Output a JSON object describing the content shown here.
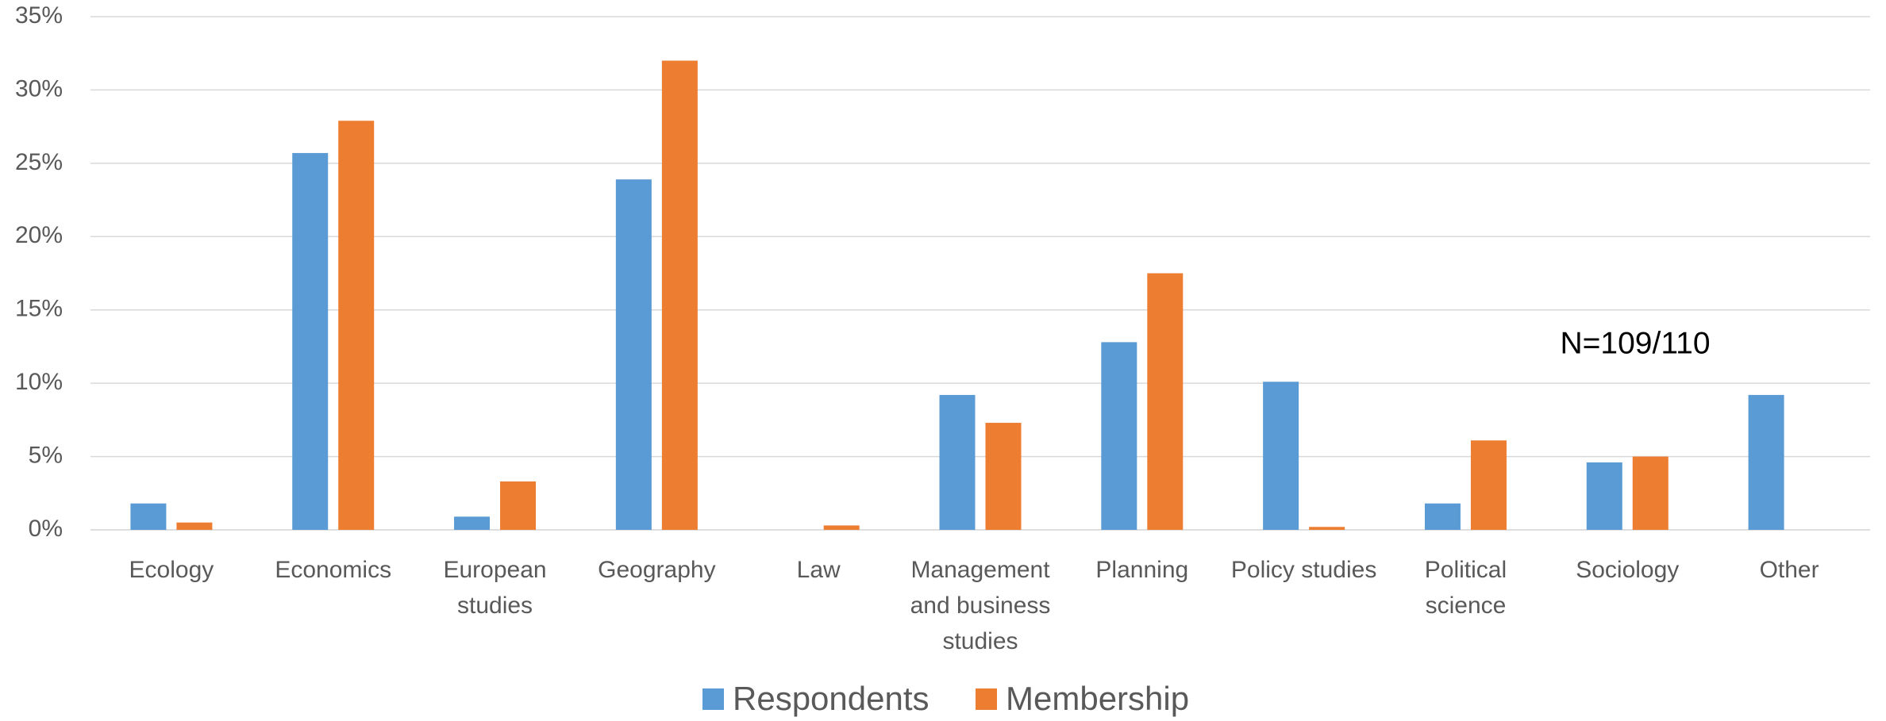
{
  "chart_data": {
    "type": "bar",
    "categories": [
      "Ecology",
      "Economics",
      "European studies",
      "Geography",
      "Law",
      "Management and business studies",
      "Planning",
      "Policy studies",
      "Political science",
      "Sociology",
      "Other"
    ],
    "series": [
      {
        "name": "Respondents",
        "color": "#5b9bd5",
        "values": [
          1.8,
          25.7,
          0.9,
          23.9,
          0,
          9.2,
          12.8,
          10.1,
          1.8,
          4.6,
          9.2
        ]
      },
      {
        "name": "Membership",
        "color": "#ed7d31",
        "values": [
          0.5,
          27.9,
          3.3,
          32.0,
          0.3,
          7.3,
          17.5,
          0.2,
          6.1,
          5.0,
          0
        ]
      }
    ],
    "ylim": [
      0,
      35
    ],
    "yticks": [
      {
        "value": 0,
        "label": "0%"
      },
      {
        "value": 5,
        "label": "5%"
      },
      {
        "value": 10,
        "label": "10%"
      },
      {
        "value": 15,
        "label": "15%"
      },
      {
        "value": 20,
        "label": "20%"
      },
      {
        "value": 25,
        "label": "25%"
      },
      {
        "value": 30,
        "label": "30%"
      },
      {
        "value": 35,
        "label": "35%"
      }
    ],
    "grid": true,
    "annotation": "N=109/110",
    "legend": "bottom"
  }
}
